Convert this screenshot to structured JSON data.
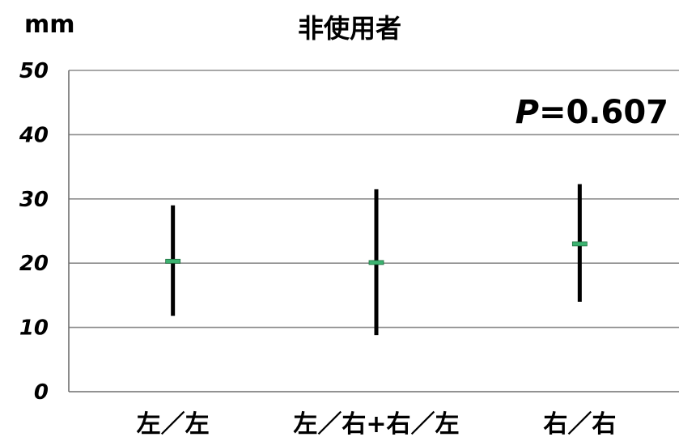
{
  "chart_data": {
    "type": "errorbar",
    "title": "非使用者",
    "ylabel": "mm",
    "ylim": [
      0,
      50
    ],
    "yticks": [
      "0",
      "10",
      "20",
      "30",
      "40",
      "50"
    ],
    "grid": true,
    "categories": [
      "左／左",
      "左／右+右／左",
      "右／右"
    ],
    "series": [
      {
        "mean": [
          20.3,
          20.1,
          23.0
        ],
        "lower": [
          11.8,
          8.8,
          14.0
        ],
        "upper": [
          29.0,
          31.5,
          32.3
        ]
      }
    ],
    "annotation": {
      "p_label": "P",
      "p_value": "=0.607"
    },
    "colors": {
      "bar": "#000000",
      "mean": "#3cb371",
      "grid": "#8c8c8c"
    }
  }
}
